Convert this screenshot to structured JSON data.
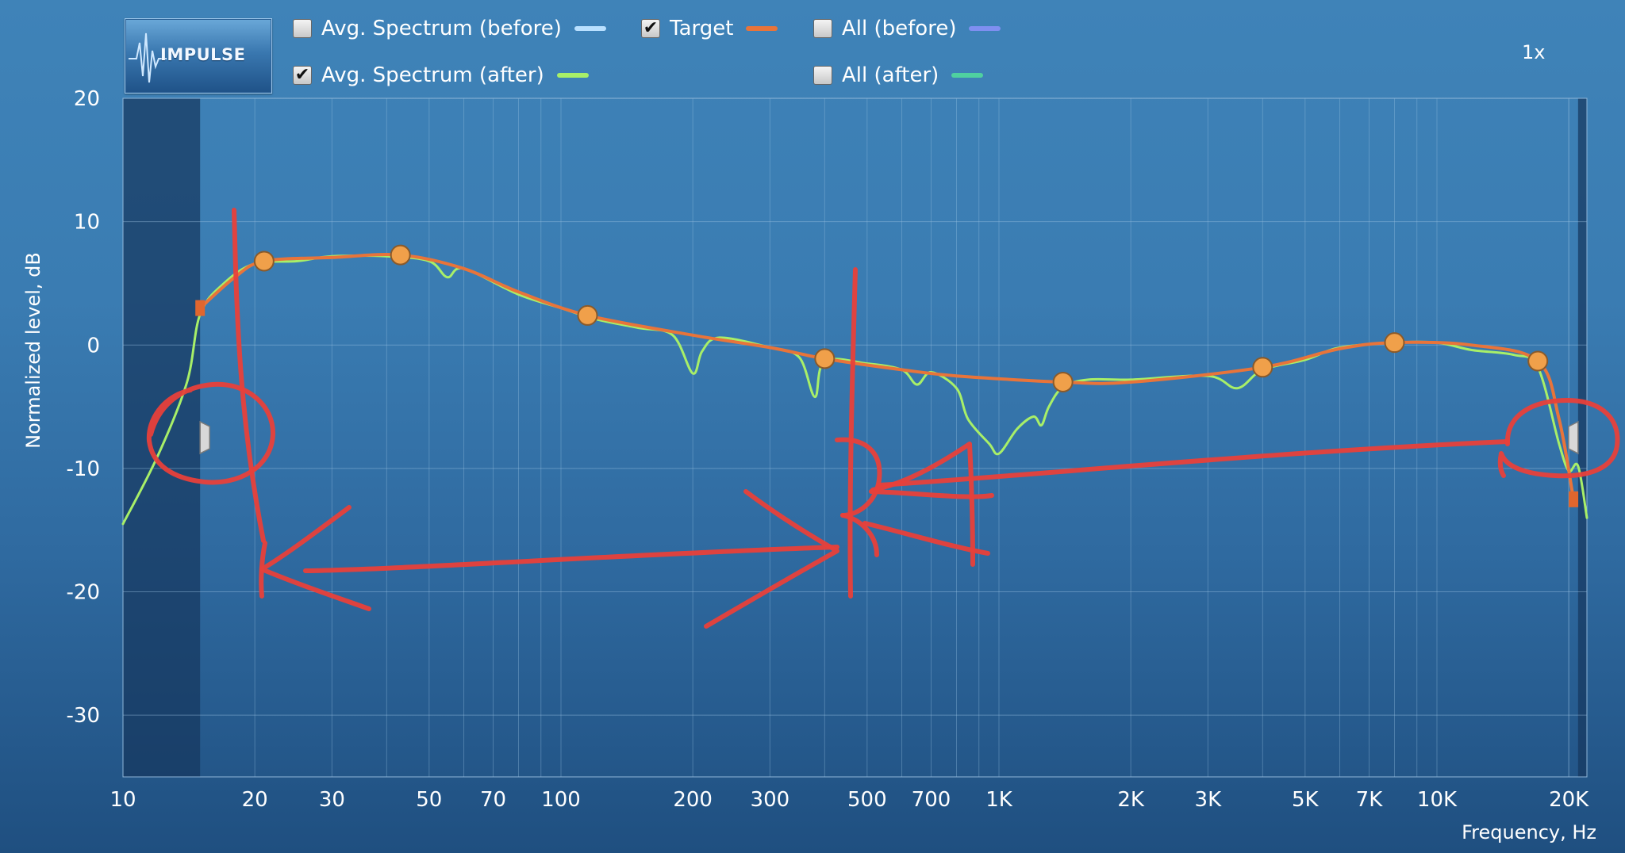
{
  "header": {
    "logo_text": "IMPULSE",
    "zoom": "1x",
    "legend": [
      {
        "label": "Avg. Spectrum (before)",
        "checked": false,
        "color": "#b9e0ff"
      },
      {
        "label": "Target",
        "checked": true,
        "color": "#e8743a"
      },
      {
        "label": "All (before)",
        "checked": false,
        "color": "#7f8ff0"
      },
      {
        "label": "Avg. Spectrum (after)",
        "checked": true,
        "color": "#a8ef68"
      },
      {
        "label": "All (after)",
        "checked": false,
        "color": "#4fd0a0"
      }
    ]
  },
  "chart_data": {
    "type": "line",
    "x_scale": "log",
    "xlim": [
      10,
      22000
    ],
    "ylim": [
      -35,
      20
    ],
    "xlabel": "Frequency, Hz",
    "ylabel": "Normalized level, dB",
    "x_ticks": [
      {
        "v": 10,
        "label": "10"
      },
      {
        "v": 20,
        "label": "20"
      },
      {
        "v": 30,
        "label": "30"
      },
      {
        "v": 50,
        "label": "50"
      },
      {
        "v": 70,
        "label": "70"
      },
      {
        "v": 100,
        "label": "100"
      },
      {
        "v": 200,
        "label": "200"
      },
      {
        "v": 300,
        "label": "300"
      },
      {
        "v": 500,
        "label": "500"
      },
      {
        "v": 700,
        "label": "700"
      },
      {
        "v": 1000,
        "label": "1K"
      },
      {
        "v": 2000,
        "label": "2K"
      },
      {
        "v": 3000,
        "label": "3K"
      },
      {
        "v": 5000,
        "label": "5K"
      },
      {
        "v": 7000,
        "label": "7K"
      },
      {
        "v": 10000,
        "label": "10K"
      },
      {
        "v": 20000,
        "label": "20K"
      }
    ],
    "y_ticks": [
      {
        "v": 20,
        "label": "20"
      },
      {
        "v": 10,
        "label": "10"
      },
      {
        "v": 0,
        "label": "0"
      },
      {
        "v": -10,
        "label": "-10"
      },
      {
        "v": -20,
        "label": "-20"
      },
      {
        "v": -30,
        "label": "-30"
      }
    ],
    "grid": true,
    "excluded_regions": [
      [
        10,
        15
      ],
      [
        21000,
        22000
      ]
    ],
    "series": [
      {
        "name": "Target",
        "color": "#e8743a",
        "points": [
          [
            15,
            3
          ],
          [
            18,
            5.5
          ],
          [
            21,
            6.8
          ],
          [
            30,
            7.1
          ],
          [
            43,
            7.3
          ],
          [
            60,
            6.2
          ],
          [
            80,
            4.3
          ],
          [
            115,
            2.4
          ],
          [
            200,
            0.8
          ],
          [
            300,
            -0.2
          ],
          [
            400,
            -1.1
          ],
          [
            600,
            -2
          ],
          [
            800,
            -2.5
          ],
          [
            1400,
            -3
          ],
          [
            2000,
            -3
          ],
          [
            4000,
            -1.8
          ],
          [
            6000,
            -0.3
          ],
          [
            8000,
            0.2
          ],
          [
            12000,
            0
          ],
          [
            17000,
            -1.3
          ],
          [
            19000,
            -6
          ],
          [
            20500,
            -12.5
          ]
        ],
        "markers": [
          [
            21,
            6.8
          ],
          [
            43,
            7.3
          ],
          [
            115,
            2.4
          ],
          [
            400,
            -1.1
          ],
          [
            1400,
            -3
          ],
          [
            4000,
            -1.8
          ],
          [
            8000,
            0.2
          ],
          [
            17000,
            -1.3
          ]
        ]
      },
      {
        "name": "Avg. Spectrum (after)",
        "color": "#a8ef68",
        "points": [
          [
            10,
            -14.5
          ],
          [
            12,
            -9
          ],
          [
            14,
            -3
          ],
          [
            15,
            2.5
          ],
          [
            17,
            5
          ],
          [
            20,
            6.6
          ],
          [
            25,
            6.8
          ],
          [
            30,
            7.2
          ],
          [
            40,
            7.2
          ],
          [
            50,
            6.8
          ],
          [
            55,
            5.5
          ],
          [
            60,
            6.2
          ],
          [
            80,
            4.1
          ],
          [
            100,
            3
          ],
          [
            120,
            2.1
          ],
          [
            150,
            1.4
          ],
          [
            180,
            0.8
          ],
          [
            200,
            -2.3
          ],
          [
            210,
            -0.5
          ],
          [
            230,
            0.6
          ],
          [
            300,
            -0.2
          ],
          [
            350,
            -1
          ],
          [
            380,
            -4.2
          ],
          [
            400,
            -1.3
          ],
          [
            500,
            -1.5
          ],
          [
            600,
            -2
          ],
          [
            650,
            -3.2
          ],
          [
            700,
            -2.2
          ],
          [
            800,
            -3.5
          ],
          [
            850,
            -6
          ],
          [
            950,
            -8
          ],
          [
            1000,
            -8.8
          ],
          [
            1100,
            -6.8
          ],
          [
            1200,
            -5.8
          ],
          [
            1250,
            -6.5
          ],
          [
            1300,
            -5
          ],
          [
            1400,
            -3.4
          ],
          [
            1600,
            -2.8
          ],
          [
            2000,
            -2.8
          ],
          [
            3000,
            -2.5
          ],
          [
            3500,
            -3.5
          ],
          [
            4000,
            -2
          ],
          [
            5000,
            -1.2
          ],
          [
            6000,
            -0.2
          ],
          [
            8000,
            0.2
          ],
          [
            10000,
            0.2
          ],
          [
            12000,
            -0.4
          ],
          [
            15000,
            -0.8
          ],
          [
            17000,
            -1.8
          ],
          [
            19000,
            -8
          ],
          [
            20000,
            -10.2
          ],
          [
            21000,
            -9.8
          ],
          [
            22000,
            -14
          ]
        ]
      }
    ]
  }
}
